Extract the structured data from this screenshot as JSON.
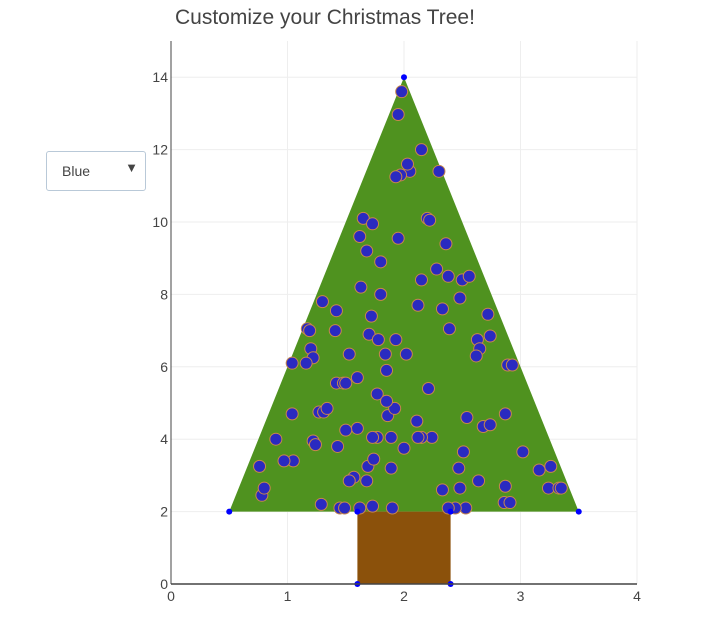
{
  "page": {
    "title": "Customize your Christmas Tree!"
  },
  "dropdown": {
    "selected": "Blue",
    "arrow": "▼"
  },
  "colors": {
    "tree": "#4f921f",
    "trunk": "#8b510b",
    "ornament_fill": "#2a2ac0",
    "ornament_edge": "#c9874b",
    "vertex": "#0000ff",
    "axis": "#444444",
    "grid": "#eeeeee"
  },
  "chart_data": {
    "type": "scatter",
    "title": "Customize your Christmas Tree!",
    "xlim": [
      0,
      4
    ],
    "ylim": [
      0,
      15
    ],
    "x_ticks": [
      0,
      1,
      2,
      3,
      4
    ],
    "y_ticks": [
      0,
      2,
      4,
      6,
      8,
      10,
      12,
      14
    ],
    "grid": true,
    "shapes": [
      {
        "name": "tree",
        "type": "polygon",
        "x": [
          0.5,
          2,
          3.5,
          0.5
        ],
        "y": [
          2,
          14,
          2,
          2
        ]
      },
      {
        "name": "trunk",
        "type": "rect",
        "x": [
          1.6,
          2.4
        ],
        "y": [
          0,
          2
        ]
      }
    ],
    "vertices": {
      "x": [
        0.5,
        2,
        3.5,
        1.6,
        2.4,
        1.6,
        2.4
      ],
      "y": [
        2,
        14,
        2,
        2,
        2,
        0,
        0
      ]
    },
    "ornaments": {
      "x": [
        1.98,
        1.95,
        2.15,
        2.05,
        1.97,
        2.3,
        2.03,
        1.93,
        2.2,
        1.65,
        1.73,
        2.22,
        1.62,
        1.95,
        2.36,
        1.8,
        1.63,
        2.28,
        2.38,
        2.15,
        1.68,
        1.8,
        2.5,
        2.56,
        2.48,
        1.3,
        1.42,
        1.72,
        2.12,
        2.33,
        2.72,
        1.17,
        1.41,
        1.19,
        1.7,
        1.78,
        1.93,
        2.39,
        2.63,
        2.74,
        2.65,
        2.62,
        1.2,
        1.53,
        1.04,
        1.84,
        1.85,
        2.02,
        2.89,
        1.22,
        1.42,
        1.6,
        1.27,
        1.31,
        1.77,
        2.21,
        2.24,
        1.48,
        1.77,
        1.86,
        1.92,
        1.85,
        2.11,
        2.54,
        1.04,
        1.22,
        1.6,
        2.87,
        1.05,
        1.34,
        1.5,
        1.73,
        1.89,
        1.69,
        1.89,
        1.74,
        2.15,
        1.43,
        2.51,
        2.68,
        2.74,
        2.0,
        2.12,
        1.68,
        1.57,
        1.53,
        1.24,
        0.9,
        0.97,
        0.78,
        1.62,
        1.73,
        1.9,
        2.53,
        3.02,
        2.48,
        2.64,
        2.87,
        3.24,
        3.33,
        3.26,
        1.29,
        1.45,
        2.47,
        3.16,
        3.35,
        2.86,
        1.16,
        1.5,
        2.44,
        0.8,
        0.76,
        1.49,
        2.33,
        2.38,
        2.91,
        2.93
      ],
      "y": [
        13.6,
        12.97,
        12.0,
        11.4,
        11.3,
        11.4,
        11.6,
        11.25,
        10.1,
        10.1,
        9.95,
        10.05,
        9.6,
        9.55,
        9.4,
        8.9,
        8.2,
        8.7,
        8.5,
        8.4,
        9.2,
        8.0,
        8.4,
        8.5,
        7.9,
        7.8,
        7.55,
        7.4,
        7.7,
        7.6,
        7.45,
        7.05,
        7.0,
        7.0,
        6.9,
        6.75,
        6.75,
        7.05,
        6.75,
        6.85,
        6.5,
        6.3,
        6.5,
        6.35,
        6.1,
        6.35,
        5.9,
        6.35,
        6.05,
        6.25,
        5.55,
        5.7,
        4.75,
        4.75,
        5.25,
        5.4,
        4.05,
        5.55,
        4.05,
        4.65,
        4.85,
        5.05,
        4.5,
        4.6,
        4.7,
        3.95,
        4.3,
        4.7,
        3.4,
        4.85,
        4.25,
        4.05,
        4.05,
        3.25,
        3.2,
        3.45,
        4.05,
        3.8,
        3.65,
        4.35,
        4.4,
        3.75,
        4.05,
        2.85,
        2.95,
        2.85,
        3.85,
        4.0,
        3.4,
        2.45,
        2.1,
        2.15,
        2.1,
        2.1,
        3.65,
        2.65,
        2.85,
        2.7,
        2.65,
        2.65,
        3.25,
        2.2,
        2.1,
        3.2,
        3.15,
        2.65,
        2.25,
        6.1,
        5.55,
        2.1,
        2.65,
        3.25,
        2.1,
        2.6,
        2.1,
        2.25,
        6.05
      ],
      "color": "Blue"
    }
  }
}
